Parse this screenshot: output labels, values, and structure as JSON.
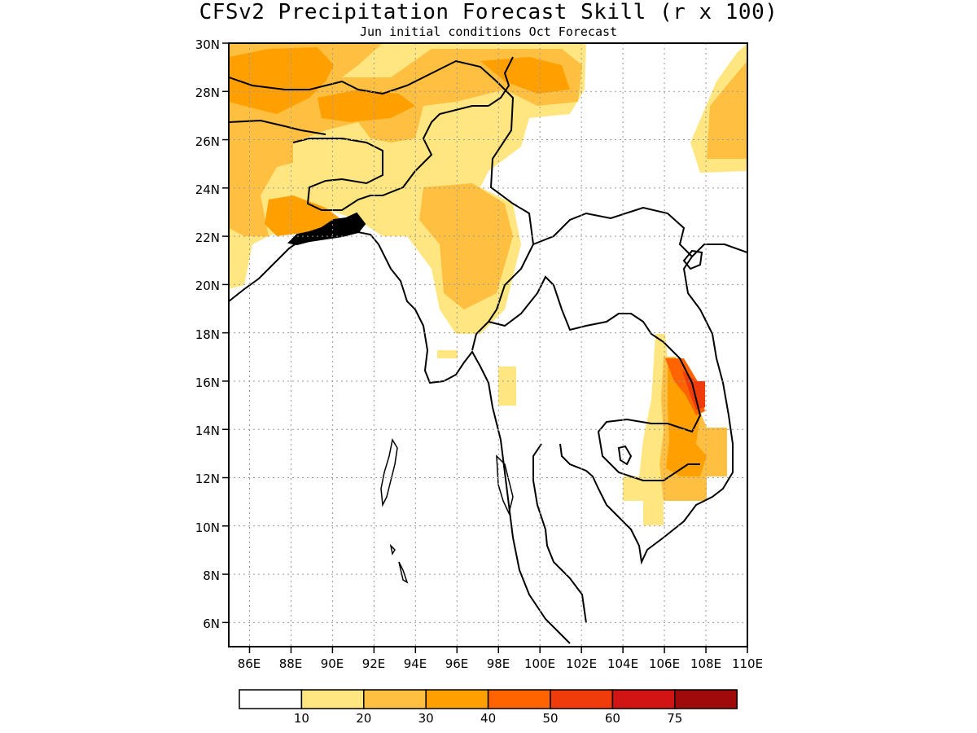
{
  "header": {
    "title": "CFSv2 Precipitation Forecast Skill (r x 100)",
    "subtitle": "Jun initial conditions  Oct Forecast"
  },
  "map": {
    "lat_labels": [
      "30N",
      "28N",
      "26N",
      "24N",
      "22N",
      "20N",
      "18N",
      "16N",
      "14N",
      "12N",
      "10N",
      "8N",
      "6N"
    ],
    "lon_labels": [
      "86E",
      "88E",
      "90E",
      "92E",
      "94E",
      "96E",
      "98E",
      "100E",
      "102E",
      "104E",
      "106E",
      "108E",
      "110E"
    ],
    "lat_range": [
      5,
      30
    ],
    "lon_range": [
      85,
      110
    ],
    "grid": true
  },
  "colorbar": {
    "colors": [
      "#ffffff",
      "#ffe680",
      "#ffbf40",
      "#ffa000",
      "#ff6400",
      "#f03c0a",
      "#d21414",
      "#a00a0a"
    ],
    "labels": [
      "10",
      "20",
      "30",
      "40",
      "50",
      "60",
      "75"
    ]
  }
}
